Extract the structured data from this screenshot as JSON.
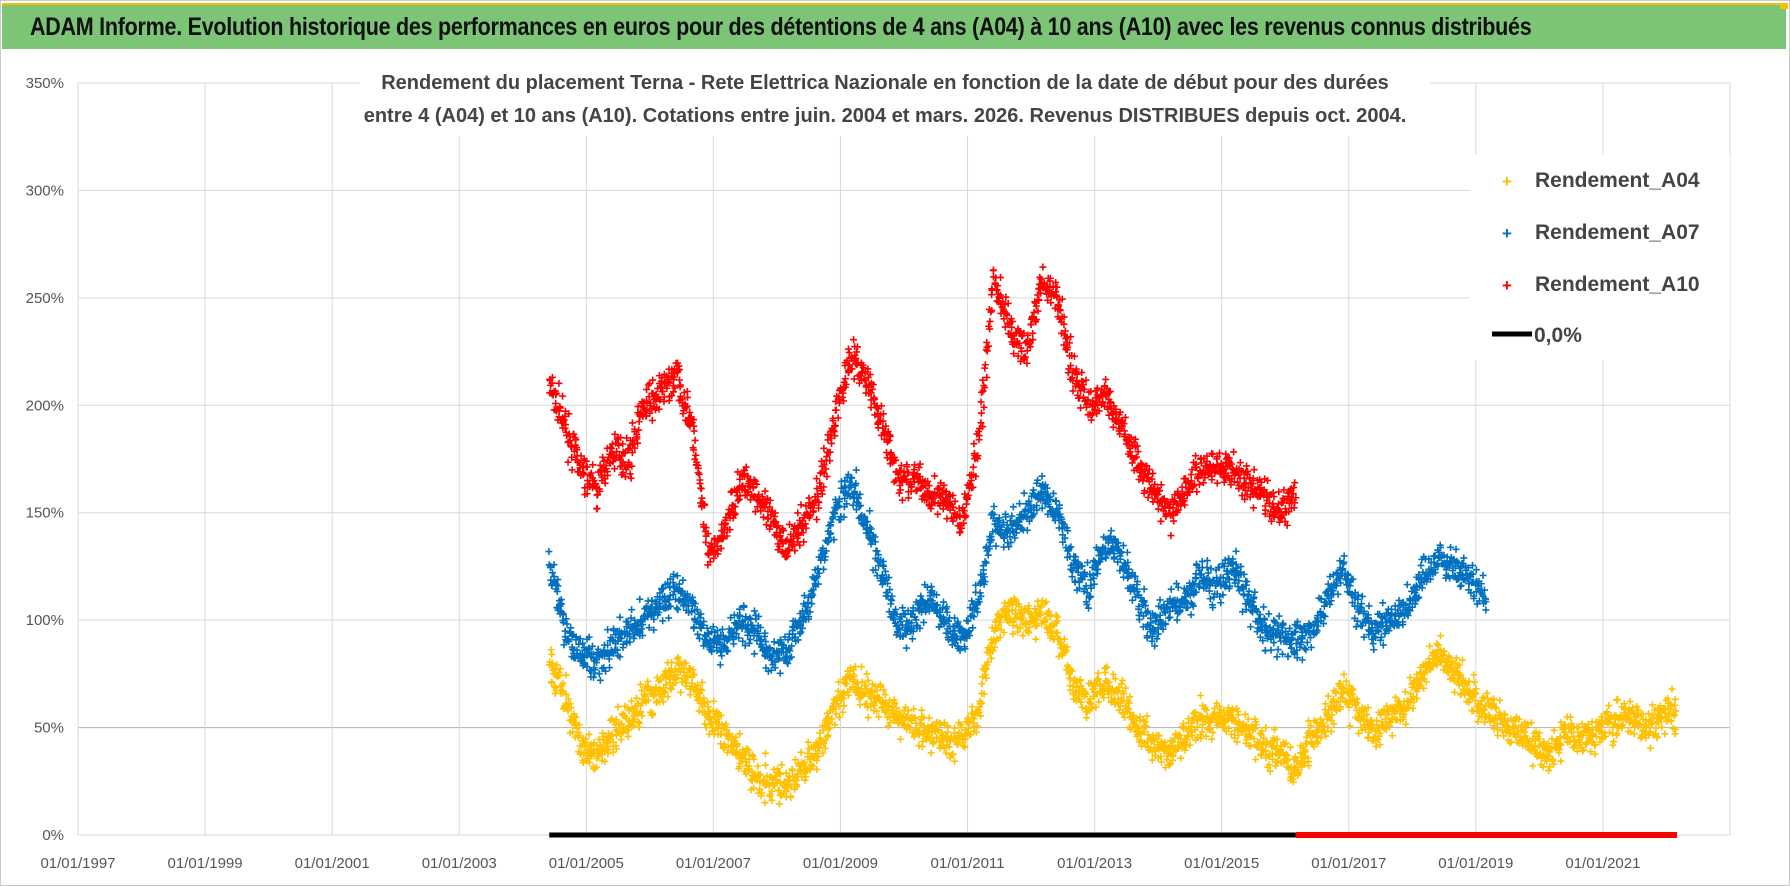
{
  "header": {
    "title": "ADAM Informe. Evolution historique des performances en euros pour des détentions de 4 ans (A04) à 10 ans (A10) avec les revenus connus distribués"
  },
  "chart_data": {
    "type": "scatter",
    "title_line1": "Rendement du placement Terna - Rete Elettrica Nazionale en fonction de la date de début pour des durées",
    "title_line2": "entre 4 (A04) et 10 ans (A10). Cotations entre juin. 2004 et mars. 2026. Revenus DISTRIBUES depuis oct. 2004.",
    "x_ticks": [
      "01/01/1997",
      "01/01/1999",
      "01/01/2001",
      "01/01/2003",
      "01/01/2005",
      "01/01/2007",
      "01/01/2009",
      "01/01/2011",
      "01/01/2013",
      "01/01/2015",
      "01/01/2017",
      "01/01/2019",
      "01/01/2021"
    ],
    "y_ticks": [
      "0%",
      "50%",
      "100%",
      "150%",
      "200%",
      "250%",
      "300%",
      "350%"
    ],
    "xlim": [
      "01/01/1997",
      "01/01/2023"
    ],
    "ylim": [
      0,
      350
    ],
    "grid": true,
    "legend_position": "right",
    "colors": {
      "A04": "#ffc000",
      "A07": "#0070c0",
      "A10": "#ff0000",
      "zero": "#000000"
    },
    "series": [
      {
        "name": "Rendement_A04",
        "color": "#ffc000",
        "x_range": [
          "2004-06",
          "2022-03"
        ],
        "points": [
          [
            "2004-06",
            78
          ],
          [
            "2004-09",
            66
          ],
          [
            "2004-12",
            40
          ],
          [
            "2005-03",
            38
          ],
          [
            "2005-06",
            45
          ],
          [
            "2005-09",
            55
          ],
          [
            "2005-12",
            62
          ],
          [
            "2006-03",
            68
          ],
          [
            "2006-06",
            76
          ],
          [
            "2006-09",
            72
          ],
          [
            "2006-12",
            55
          ],
          [
            "2007-03",
            48
          ],
          [
            "2007-06",
            40
          ],
          [
            "2007-09",
            28
          ],
          [
            "2007-12",
            24
          ],
          [
            "2008-03",
            25
          ],
          [
            "2008-06",
            30
          ],
          [
            "2008-09",
            42
          ],
          [
            "2008-12",
            58
          ],
          [
            "2009-03",
            72
          ],
          [
            "2009-06",
            66
          ],
          [
            "2009-09",
            62
          ],
          [
            "2009-12",
            55
          ],
          [
            "2010-03",
            52
          ],
          [
            "2010-06",
            48
          ],
          [
            "2010-09",
            44
          ],
          [
            "2010-12",
            45
          ],
          [
            "2011-03",
            58
          ],
          [
            "2011-06",
            95
          ],
          [
            "2011-09",
            105
          ],
          [
            "2011-12",
            98
          ],
          [
            "2012-03",
            102
          ],
          [
            "2012-06",
            95
          ],
          [
            "2012-09",
            70
          ],
          [
            "2012-12",
            62
          ],
          [
            "2013-03",
            72
          ],
          [
            "2013-06",
            65
          ],
          [
            "2013-09",
            50
          ],
          [
            "2013-12",
            42
          ],
          [
            "2014-03",
            38
          ],
          [
            "2014-06",
            45
          ],
          [
            "2014-09",
            55
          ],
          [
            "2014-12",
            52
          ],
          [
            "2015-03",
            55
          ],
          [
            "2015-06",
            48
          ],
          [
            "2015-09",
            42
          ],
          [
            "2015-12",
            38
          ],
          [
            "2016-03",
            30
          ],
          [
            "2016-06",
            45
          ],
          [
            "2016-09",
            55
          ],
          [
            "2016-12",
            68
          ],
          [
            "2017-03",
            58
          ],
          [
            "2017-06",
            48
          ],
          [
            "2017-09",
            55
          ],
          [
            "2017-12",
            60
          ],
          [
            "2018-03",
            75
          ],
          [
            "2018-06",
            85
          ],
          [
            "2018-09",
            75
          ],
          [
            "2018-12",
            65
          ],
          [
            "2019-03",
            58
          ],
          [
            "2019-06",
            54
          ],
          [
            "2019-09",
            48
          ],
          [
            "2019-12",
            42
          ],
          [
            "2020-03",
            36
          ],
          [
            "2020-06",
            48
          ],
          [
            "2020-09",
            45
          ],
          [
            "2020-12",
            50
          ],
          [
            "2021-03",
            52
          ],
          [
            "2021-06",
            55
          ],
          [
            "2021-09",
            50
          ],
          [
            "2021-12",
            55
          ],
          [
            "2022-03",
            58
          ]
        ]
      },
      {
        "name": "Rendement_A07",
        "color": "#0070c0",
        "x_range": [
          "2004-06",
          "2019-03"
        ],
        "points": [
          [
            "2004-06",
            130
          ],
          [
            "2004-09",
            95
          ],
          [
            "2004-12",
            85
          ],
          [
            "2005-03",
            80
          ],
          [
            "2005-06",
            88
          ],
          [
            "2005-09",
            95
          ],
          [
            "2005-12",
            100
          ],
          [
            "2006-03",
            108
          ],
          [
            "2006-06",
            115
          ],
          [
            "2006-09",
            105
          ],
          [
            "2006-12",
            90
          ],
          [
            "2007-03",
            88
          ],
          [
            "2007-06",
            100
          ],
          [
            "2007-09",
            95
          ],
          [
            "2007-12",
            82
          ],
          [
            "2008-03",
            88
          ],
          [
            "2008-06",
            100
          ],
          [
            "2008-09",
            125
          ],
          [
            "2008-12",
            150
          ],
          [
            "2009-03",
            165
          ],
          [
            "2009-06",
            145
          ],
          [
            "2009-09",
            120
          ],
          [
            "2009-12",
            95
          ],
          [
            "2010-03",
            100
          ],
          [
            "2010-06",
            110
          ],
          [
            "2010-09",
            100
          ],
          [
            "2010-12",
            90
          ],
          [
            "2011-03",
            110
          ],
          [
            "2011-06",
            145
          ],
          [
            "2011-09",
            140
          ],
          [
            "2011-12",
            150
          ],
          [
            "2012-03",
            160
          ],
          [
            "2012-06",
            150
          ],
          [
            "2012-09",
            125
          ],
          [
            "2012-12",
            115
          ],
          [
            "2013-03",
            135
          ],
          [
            "2013-06",
            130
          ],
          [
            "2013-09",
            110
          ],
          [
            "2013-12",
            95
          ],
          [
            "2014-03",
            105
          ],
          [
            "2014-06",
            110
          ],
          [
            "2014-09",
            120
          ],
          [
            "2014-12",
            115
          ],
          [
            "2015-03",
            125
          ],
          [
            "2015-06",
            110
          ],
          [
            "2015-09",
            95
          ],
          [
            "2015-12",
            92
          ],
          [
            "2016-03",
            90
          ],
          [
            "2016-06",
            95
          ],
          [
            "2016-09",
            110
          ],
          [
            "2016-12",
            125
          ],
          [
            "2017-03",
            105
          ],
          [
            "2017-06",
            95
          ],
          [
            "2017-09",
            100
          ],
          [
            "2017-12",
            105
          ],
          [
            "2018-03",
            120
          ],
          [
            "2018-06",
            130
          ],
          [
            "2018-09",
            125
          ],
          [
            "2018-12",
            118
          ],
          [
            "2019-03",
            112
          ]
        ]
      },
      {
        "name": "Rendement_A10",
        "color": "#ff0000",
        "x_range": [
          "2004-06",
          "2016-03"
        ],
        "points": [
          [
            "2004-06",
            210
          ],
          [
            "2004-09",
            190
          ],
          [
            "2004-12",
            170
          ],
          [
            "2005-03",
            160
          ],
          [
            "2005-06",
            180
          ],
          [
            "2005-09",
            175
          ],
          [
            "2005-12",
            200
          ],
          [
            "2006-03",
            205
          ],
          [
            "2006-06",
            215
          ],
          [
            "2006-09",
            190
          ],
          [
            "2006-12",
            130
          ],
          [
            "2007-03",
            140
          ],
          [
            "2007-06",
            165
          ],
          [
            "2007-09",
            160
          ],
          [
            "2007-12",
            145
          ],
          [
            "2008-03",
            135
          ],
          [
            "2008-06",
            145
          ],
          [
            "2008-09",
            160
          ],
          [
            "2008-12",
            195
          ],
          [
            "2009-03",
            225
          ],
          [
            "2009-06",
            210
          ],
          [
            "2009-09",
            190
          ],
          [
            "2009-12",
            165
          ],
          [
            "2010-03",
            165
          ],
          [
            "2010-06",
            160
          ],
          [
            "2010-09",
            155
          ],
          [
            "2010-12",
            145
          ],
          [
            "2011-03",
            180
          ],
          [
            "2011-06",
            260
          ],
          [
            "2011-09",
            235
          ],
          [
            "2011-12",
            225
          ],
          [
            "2012-03",
            255
          ],
          [
            "2012-06",
            250
          ],
          [
            "2012-09",
            215
          ],
          [
            "2012-12",
            200
          ],
          [
            "2013-03",
            205
          ],
          [
            "2013-06",
            190
          ],
          [
            "2013-09",
            175
          ],
          [
            "2013-12",
            160
          ],
          [
            "2014-03",
            150
          ],
          [
            "2014-06",
            160
          ],
          [
            "2014-09",
            170
          ],
          [
            "2014-12",
            172
          ],
          [
            "2015-03",
            170
          ],
          [
            "2015-06",
            162
          ],
          [
            "2015-09",
            158
          ],
          [
            "2015-12",
            150
          ],
          [
            "2016-03",
            160
          ]
        ]
      }
    ],
    "zero_line": {
      "name": "0,0%",
      "value": 0
    }
  }
}
